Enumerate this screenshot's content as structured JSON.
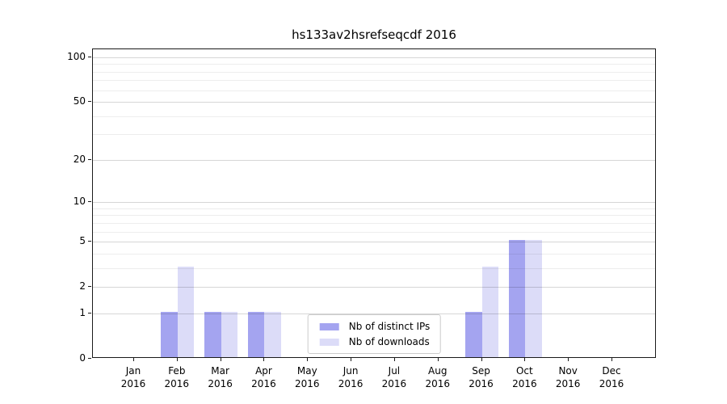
{
  "title": "hs133av2hsrefseqcdf 2016",
  "chart_data": {
    "type": "bar",
    "title": "hs133av2hsrefseqcdf 2016",
    "categories": [
      "Jan",
      "Feb",
      "Mar",
      "Apr",
      "May",
      "Jun",
      "Jul",
      "Aug",
      "Sep",
      "Oct",
      "Nov",
      "Dec"
    ],
    "category_sublabel": "2016",
    "series": [
      {
        "name": "Nb of distinct IPs",
        "color": "#a4a4f0",
        "values": [
          0,
          1,
          1,
          1,
          0,
          0,
          0,
          0,
          1,
          5,
          0,
          0
        ]
      },
      {
        "name": "Nb of downloads",
        "color": "#dcdcf8",
        "values": [
          0,
          3,
          1,
          1,
          0,
          0,
          0,
          0,
          3,
          5,
          0,
          0
        ]
      }
    ],
    "xlabel": "",
    "ylabel": "",
    "yscale": "log1p",
    "ylim": [
      0,
      113
    ],
    "yticks": [
      0,
      1,
      2,
      5,
      10,
      20,
      50,
      100
    ],
    "yminorticks": [
      3,
      4,
      6,
      7,
      8,
      9,
      30,
      40,
      60,
      70,
      80,
      90
    ],
    "grid": "horizontal",
    "legend_position": "bottom-center"
  }
}
